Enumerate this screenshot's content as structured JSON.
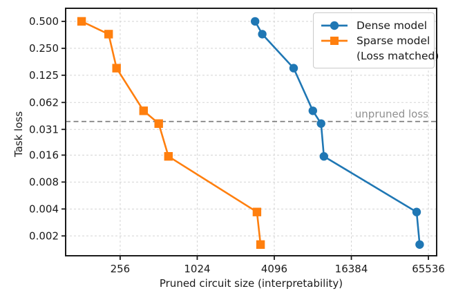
{
  "figure": {
    "background": "#ffffff",
    "text_color": "#1a1a1a",
    "grid_color": "#d3d3d3",
    "spine_color": "#1a1a1a"
  },
  "legend": {
    "position": "upper right",
    "items": [
      {
        "key": "dense-model",
        "label": "Dense model",
        "label_line2": "",
        "color": "#1f77b4",
        "marker": "circle"
      },
      {
        "key": "sparse-model",
        "label": "Sparse model",
        "label_line2": "(Loss matched)",
        "color": "#ff7f0e",
        "marker": "square"
      }
    ]
  },
  "annotation": {
    "text": "unpruned loss",
    "color": "#8f8f8f"
  },
  "chart_data": {
    "type": "line",
    "title": "",
    "xlabel": "Pruned circuit size (interpretability)",
    "ylabel": "Task loss",
    "x_scale": "log2",
    "y_scale": "log2",
    "xlim": [
      96,
      76000
    ],
    "ylim": [
      0.0012,
      0.7
    ],
    "x_ticks": [
      256,
      1024,
      4096,
      16384,
      65536
    ],
    "x_tick_labels": [
      "256",
      "1024",
      "4096",
      "16384",
      "65536"
    ],
    "y_ticks": [
      0.5,
      0.25,
      0.125,
      0.062,
      0.031,
      0.016,
      0.008,
      0.004,
      0.002
    ],
    "y_tick_labels": [
      "0.500",
      "0.250",
      "0.125",
      "0.062",
      "0.031",
      "0.016",
      "0.008",
      "0.004",
      "0.002"
    ],
    "grid": true,
    "legend_position": "upper right",
    "hline": {
      "value": 0.038,
      "label": "unpruned loss",
      "style": "dashed",
      "color": "#7f7f7f"
    },
    "series": [
      {
        "name": "Dense model",
        "key": "dense-model",
        "color": "#1f77b4",
        "marker": "circle",
        "x": [
          2900,
          3300,
          5800,
          8200,
          9500,
          10000,
          53000,
          56000
        ],
        "y": [
          0.5,
          0.36,
          0.15,
          0.05,
          0.036,
          0.0155,
          0.0037,
          0.0016
        ]
      },
      {
        "name": "Sparse model (Loss matched)",
        "key": "sparse-model",
        "color": "#ff7f0e",
        "marker": "square",
        "x": [
          128,
          208,
          240,
          390,
          512,
          610,
          3000,
          3200
        ],
        "y": [
          0.5,
          0.36,
          0.15,
          0.05,
          0.036,
          0.0155,
          0.0037,
          0.0016
        ]
      }
    ]
  }
}
